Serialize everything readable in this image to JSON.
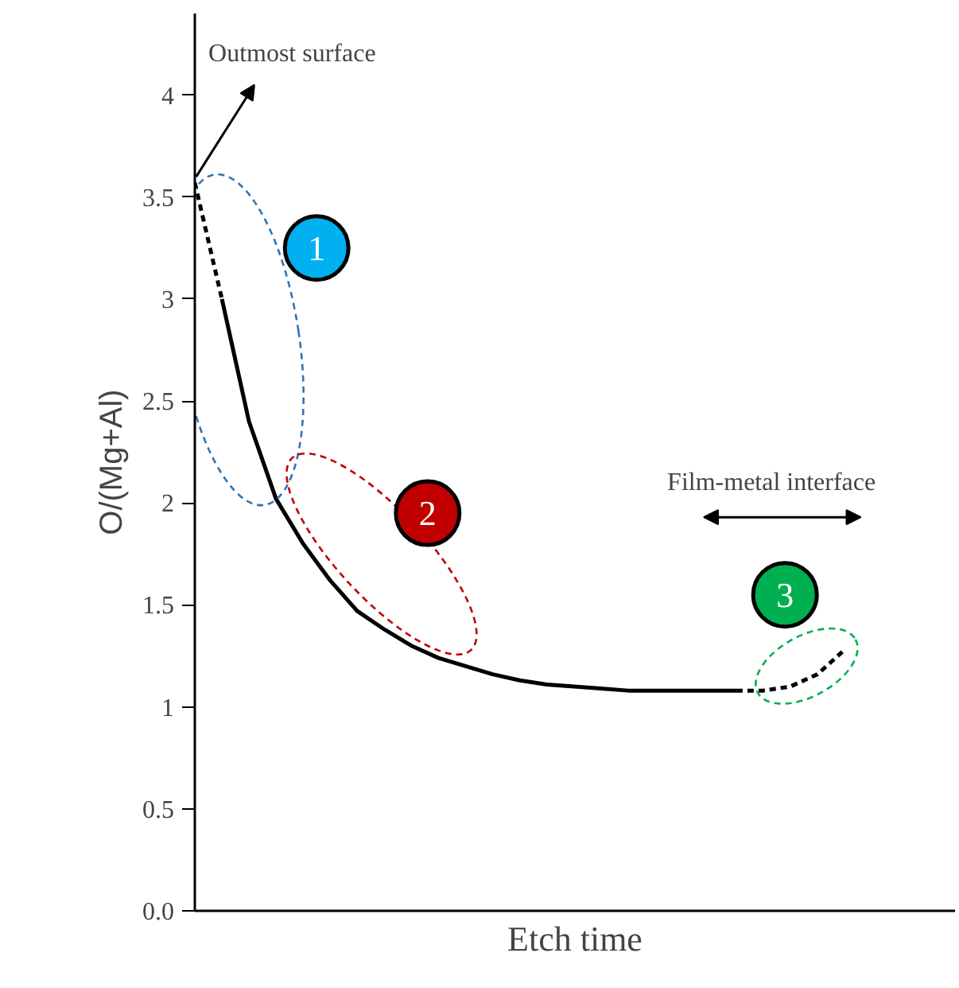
{
  "chart_data": {
    "type": "line",
    "xlabel": "Etch time",
    "ylabel": "O/(Mg+Al)",
    "categories": [
      null,
      null,
      null,
      null,
      null,
      null,
      null,
      null,
      null,
      null,
      null,
      null,
      null,
      null,
      null,
      null,
      null,
      null,
      null,
      null,
      null,
      null,
      null,
      null,
      null
    ],
    "series": [
      {
        "color": "#000000",
        "line_style": "dashed",
        "values": [
          3.57,
          3.0,
          null,
          null,
          null,
          null,
          null,
          null,
          null,
          null,
          null,
          null,
          null,
          null,
          null,
          null,
          null,
          null,
          null,
          null,
          null,
          null,
          null,
          null,
          null
        ]
      },
      {
        "color": "#000000",
        "line_style": "solid",
        "values": [
          null,
          3.0,
          2.4,
          2.02,
          1.8,
          1.62,
          1.47,
          1.38,
          1.3,
          1.24,
          1.2,
          1.16,
          1.13,
          1.11,
          1.1,
          1.09,
          1.08,
          1.08,
          1.08,
          1.08,
          1.08,
          null,
          null,
          null,
          null
        ]
      },
      {
        "color": "#000000",
        "line_style": "dashed",
        "values": [
          null,
          null,
          null,
          null,
          null,
          null,
          null,
          null,
          null,
          null,
          null,
          null,
          null,
          null,
          null,
          null,
          null,
          null,
          null,
          null,
          1.08,
          1.08,
          1.1,
          1.16,
          1.28
        ]
      }
    ],
    "ylim": [
      0,
      4.4
    ],
    "yticks": [
      {
        "value": 0,
        "label": "0.0"
      },
      0.5,
      1,
      1.5,
      2,
      2.5,
      3,
      3.5,
      4
    ],
    "tick_labels": "y",
    "grid": false,
    "marker": "none",
    "annotations": [
      "Outmost surface",
      "Film-metal interface",
      "1",
      "2",
      "3"
    ]
  }
}
